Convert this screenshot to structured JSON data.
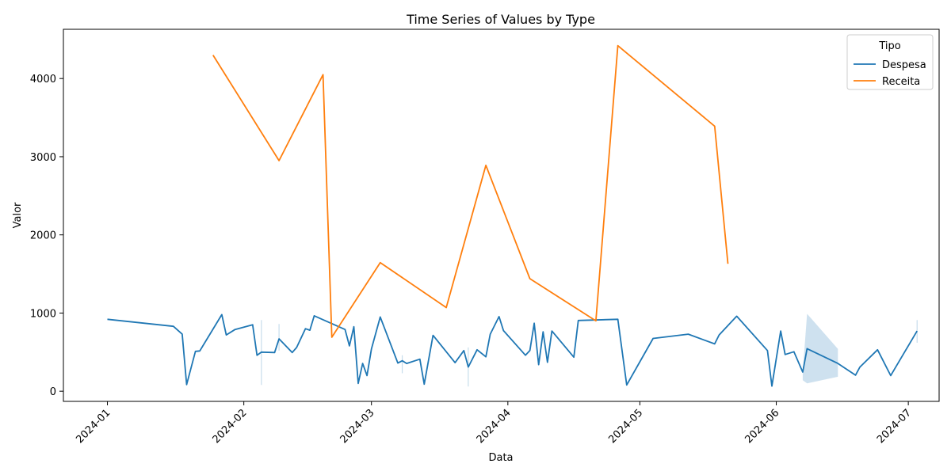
{
  "chart_data": {
    "type": "line",
    "title": "Time Series of Values by Type",
    "xlabel": "Data",
    "ylabel": "Valor",
    "xlim": [
      "2023-12-22",
      "2024-07-08"
    ],
    "ylim": [
      -130,
      4630
    ],
    "x_ticks": [
      "2024-01",
      "2024-02",
      "2024-03",
      "2024-04",
      "2024-05",
      "2024-06",
      "2024-07"
    ],
    "y_ticks": [
      0,
      1000,
      2000,
      3000,
      4000
    ],
    "grid": false,
    "legend": {
      "title": "Tipo",
      "placement": "upper-right"
    },
    "series": [
      {
        "name": "Despesa",
        "color": "#1f77b4",
        "points": [
          [
            "2024-01-01",
            920
          ],
          [
            "2024-01-16",
            830
          ],
          [
            "2024-01-18",
            730
          ],
          [
            "2024-01-19",
            85
          ],
          [
            "2024-01-21",
            510
          ],
          [
            "2024-01-22",
            515
          ],
          [
            "2024-01-27",
            980
          ],
          [
            "2024-01-28",
            720
          ],
          [
            "2024-01-30",
            790
          ],
          [
            "2024-02-03",
            850
          ],
          [
            "2024-02-04",
            460
          ],
          [
            "2024-02-05",
            500
          ],
          [
            "2024-02-08",
            495
          ],
          [
            "2024-02-09",
            670
          ],
          [
            "2024-02-12",
            495
          ],
          [
            "2024-02-13",
            560
          ],
          [
            "2024-02-15",
            800
          ],
          [
            "2024-02-16",
            780
          ],
          [
            "2024-02-17",
            965
          ],
          [
            "2024-02-24",
            790
          ],
          [
            "2024-02-25",
            580
          ],
          [
            "2024-02-26",
            825
          ],
          [
            "2024-02-27",
            100
          ],
          [
            "2024-02-28",
            355
          ],
          [
            "2024-02-29",
            200
          ],
          [
            "2024-03-01",
            540
          ],
          [
            "2024-03-03",
            950
          ],
          [
            "2024-03-07",
            360
          ],
          [
            "2024-03-08",
            390
          ],
          [
            "2024-03-09",
            355
          ],
          [
            "2024-03-12",
            410
          ],
          [
            "2024-03-13",
            90
          ],
          [
            "2024-03-15",
            715
          ],
          [
            "2024-03-20",
            365
          ],
          [
            "2024-03-22",
            520
          ],
          [
            "2024-03-23",
            310
          ],
          [
            "2024-03-25",
            530
          ],
          [
            "2024-03-27",
            440
          ],
          [
            "2024-03-28",
            730
          ],
          [
            "2024-03-30",
            955
          ],
          [
            "2024-03-31",
            775
          ],
          [
            "2024-04-05",
            460
          ],
          [
            "2024-04-06",
            520
          ],
          [
            "2024-04-07",
            870
          ],
          [
            "2024-04-08",
            340
          ],
          [
            "2024-04-09",
            760
          ],
          [
            "2024-04-10",
            370
          ],
          [
            "2024-04-11",
            770
          ],
          [
            "2024-04-16",
            435
          ],
          [
            "2024-04-17",
            905
          ],
          [
            "2024-04-26",
            920
          ],
          [
            "2024-04-28",
            80
          ],
          [
            "2024-05-04",
            675
          ],
          [
            "2024-05-12",
            730
          ],
          [
            "2024-05-18",
            605
          ],
          [
            "2024-05-19",
            720
          ],
          [
            "2024-05-23",
            960
          ],
          [
            "2024-05-30",
            520
          ],
          [
            "2024-05-31",
            65
          ],
          [
            "2024-06-02",
            770
          ],
          [
            "2024-06-03",
            470
          ],
          [
            "2024-06-05",
            505
          ],
          [
            "2024-06-07",
            245
          ],
          [
            "2024-06-08",
            545
          ],
          [
            "2024-06-15",
            355
          ],
          [
            "2024-06-19",
            205
          ],
          [
            "2024-06-20",
            310
          ],
          [
            "2024-06-24",
            530
          ],
          [
            "2024-06-27",
            200
          ],
          [
            "2024-07-03",
            770
          ]
        ],
        "confidence_bands": [
          {
            "x": [
              "2024-06-07",
              "2024-06-08",
              "2024-06-15"
            ],
            "low": [
              140,
              100,
              185
            ],
            "high": [
              250,
              990,
              540
            ]
          }
        ],
        "confidence_ticks": [
          {
            "x": "2024-02-05",
            "low": 80,
            "high": 910
          },
          {
            "x": "2024-02-09",
            "low": 520,
            "high": 860
          },
          {
            "x": "2024-03-08",
            "low": 230,
            "high": 460
          },
          {
            "x": "2024-03-23",
            "low": 60,
            "high": 560
          },
          {
            "x": "2024-07-03",
            "low": 620,
            "high": 910
          }
        ]
      },
      {
        "name": "Receita",
        "color": "#ff7f0e",
        "points": [
          [
            "2024-01-25",
            4300
          ],
          [
            "2024-02-09",
            2950
          ],
          [
            "2024-02-19",
            4050
          ],
          [
            "2024-02-21",
            690
          ],
          [
            "2024-03-03",
            1645
          ],
          [
            "2024-03-18",
            1070
          ],
          [
            "2024-03-27",
            2890
          ],
          [
            "2024-04-06",
            1440
          ],
          [
            "2024-04-21",
            900
          ],
          [
            "2024-04-26",
            4420
          ],
          [
            "2024-05-18",
            3390
          ],
          [
            "2024-05-21",
            1630
          ]
        ]
      }
    ]
  }
}
